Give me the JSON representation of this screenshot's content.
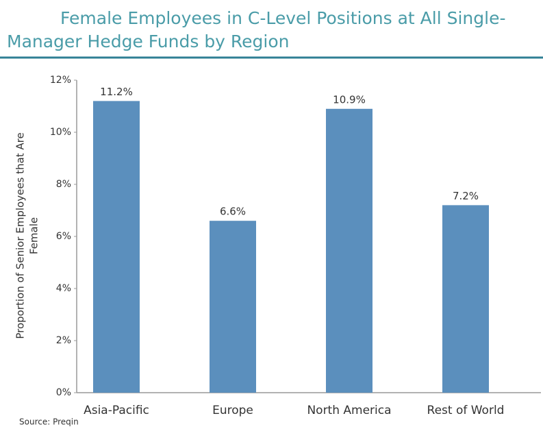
{
  "chart_data": {
    "type": "bar",
    "title": [
      "Female Employees in C-Level Positions at All Single-",
      "Manager Hedge Funds by Region"
    ],
    "y_label": [
      "Proportion of Senior Employees that Are",
      "Female"
    ],
    "source": "Source: Preqin",
    "categories": [
      "Asia-Pacific",
      "Europe",
      "North America",
      "Rest of World"
    ],
    "values": [
      11.2,
      6.6,
      10.9,
      7.2
    ],
    "value_labels": [
      "11.2%",
      "6.6%",
      "10.9%",
      "7.2%"
    ],
    "color": "#5b8fbd",
    "ylim": [
      0,
      12
    ],
    "yticks": [
      {
        "value": 0,
        "label": "0%"
      },
      {
        "value": 2,
        "label": "2%"
      },
      {
        "value": 4,
        "label": "4%"
      },
      {
        "value": 6,
        "label": "6%"
      },
      {
        "value": 8,
        "label": "8%"
      },
      {
        "value": 10,
        "label": "10%"
      },
      {
        "value": 12,
        "label": "12%"
      }
    ],
    "grid": false
  }
}
